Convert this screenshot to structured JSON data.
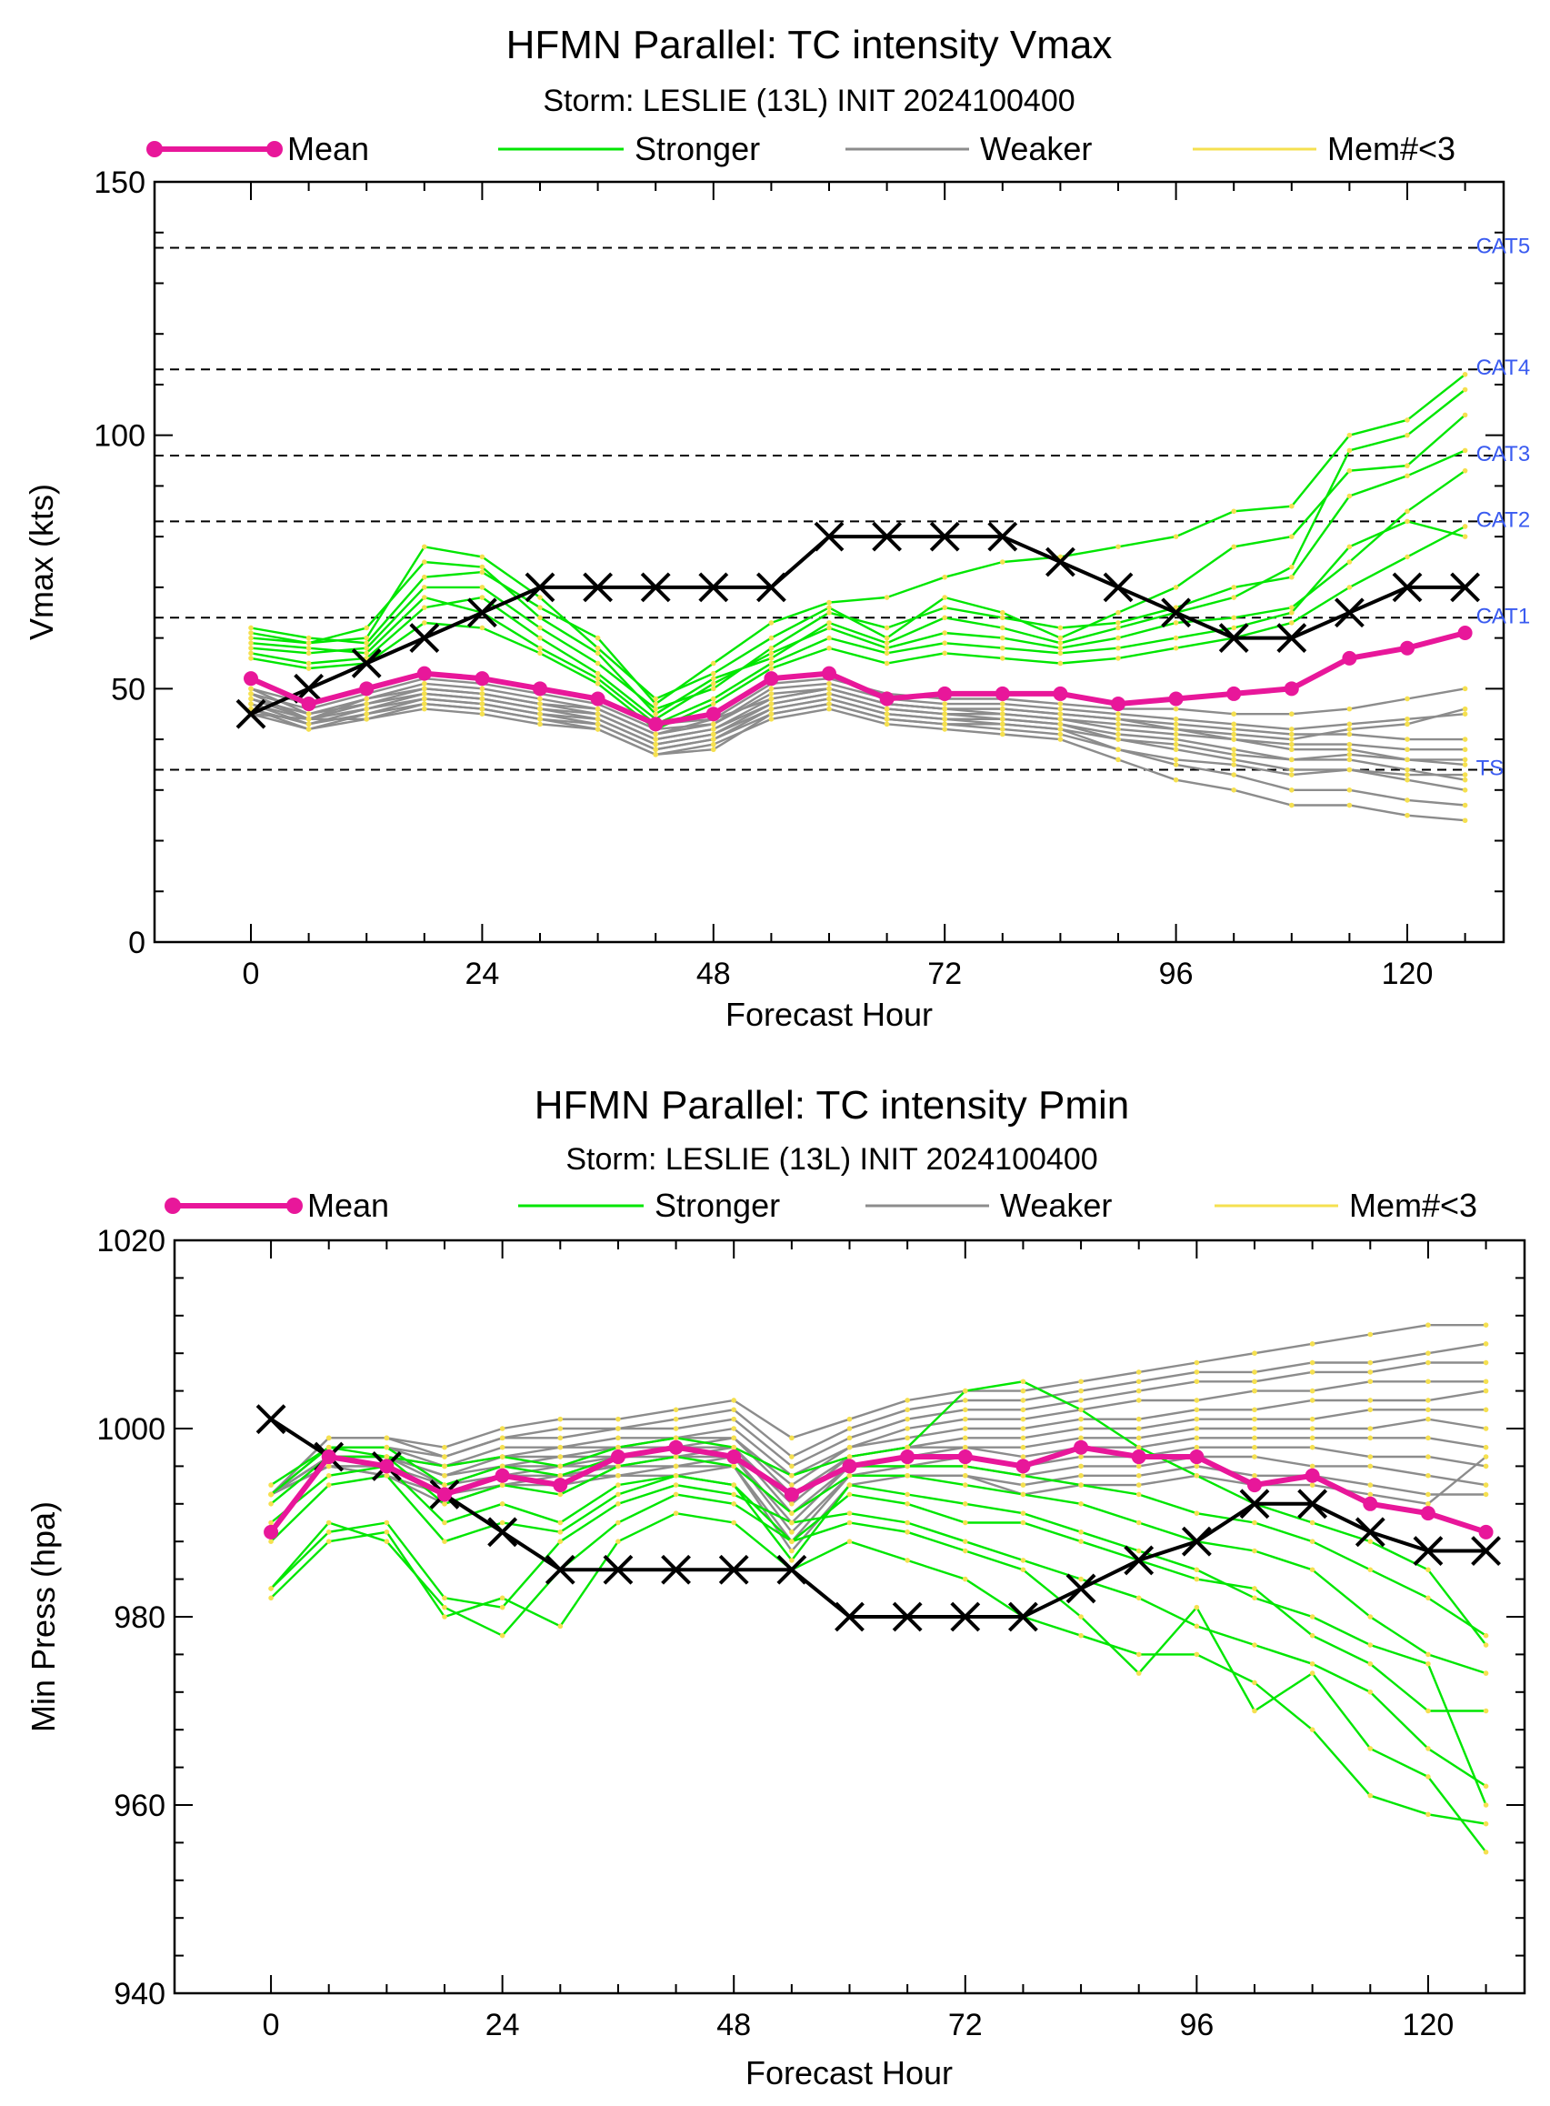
{
  "colors": {
    "mean": "#e8179a",
    "stronger": "#00e600",
    "weaker": "#8c8c8c",
    "memlt3": "#f5e050",
    "obs": "#000000",
    "category": "#3a5bf0",
    "dashed": "#000000"
  },
  "chart_data": [
    {
      "type": "line",
      "title": "HFMN Parallel: TC intensity Vmax",
      "subtitle": "Storm: LESLIE (13L) INIT 2024100400",
      "xlabel": "Forecast Hour",
      "ylabel": "Vmax (kts)",
      "xlim": [
        -10,
        130
      ],
      "ylim": [
        0,
        150
      ],
      "xticks": [
        0,
        24,
        48,
        72,
        96,
        120
      ],
      "yticks": [
        0,
        50,
        100,
        150
      ],
      "legend": {
        "placement": "top",
        "entries": [
          "Mean",
          "Stronger",
          "Weaker",
          "Mem#<3"
        ]
      },
      "category_lines": [
        {
          "label": "TS",
          "value": 34
        },
        {
          "label": "CAT1",
          "value": 64
        },
        {
          "label": "CAT2",
          "value": 83
        },
        {
          "label": "CAT3",
          "value": 96
        },
        {
          "label": "CAT4",
          "value": 113
        },
        {
          "label": "CAT5",
          "value": 137
        }
      ],
      "x": [
        0,
        6,
        12,
        18,
        24,
        30,
        36,
        42,
        48,
        54,
        60,
        66,
        72,
        78,
        84,
        90,
        96,
        102,
        108,
        114,
        120,
        126
      ],
      "mean": [
        52,
        47,
        50,
        53,
        52,
        50,
        48,
        43,
        45,
        52,
        53,
        48,
        49,
        49,
        49,
        47,
        48,
        49,
        50,
        56,
        58,
        61
      ],
      "observed": [
        45,
        50,
        55,
        60,
        65,
        70,
        70,
        70,
        70,
        70,
        80,
        80,
        80,
        80,
        75,
        70,
        65,
        60,
        60,
        65,
        70,
        70
      ],
      "members_stronger": [
        [
          61,
          59,
          60,
          78,
          76,
          68,
          58,
          48,
          53,
          60,
          66,
          60,
          68,
          65,
          60,
          65,
          70,
          78,
          80,
          93,
          94,
          104
        ],
        [
          62,
          60,
          59,
          72,
          73,
          66,
          60,
          47,
          55,
          63,
          67,
          68,
          72,
          75,
          76,
          78,
          80,
          85,
          86,
          100,
          103,
          112
        ],
        [
          58,
          57,
          58,
          70,
          70,
          62,
          55,
          46,
          50,
          58,
          65,
          62,
          66,
          64,
          62,
          63,
          66,
          70,
          72,
          88,
          92,
          97
        ],
        [
          60,
          59,
          62,
          75,
          74,
          64,
          57,
          45,
          52,
          56,
          63,
          59,
          64,
          62,
          59,
          62,
          65,
          68,
          74,
          97,
          100,
          109
        ],
        [
          57,
          55,
          56,
          66,
          68,
          60,
          53,
          44,
          51,
          57,
          62,
          58,
          61,
          60,
          58,
          60,
          63,
          64,
          66,
          75,
          85,
          93
        ],
        [
          59,
          58,
          57,
          68,
          65,
          58,
          52,
          43,
          48,
          55,
          60,
          57,
          59,
          58,
          57,
          58,
          60,
          62,
          65,
          78,
          83,
          80
        ],
        [
          56,
          54,
          55,
          63,
          62,
          57,
          51,
          42,
          47,
          54,
          58,
          55,
          57,
          56,
          55,
          56,
          58,
          60,
          63,
          70,
          76,
          82
        ]
      ],
      "members_weaker": [
        [
          50,
          45,
          48,
          50,
          49,
          47,
          46,
          41,
          44,
          48,
          50,
          47,
          46,
          45,
          44,
          43,
          42,
          40,
          38,
          38,
          36,
          35
        ],
        [
          48,
          44,
          47,
          49,
          48,
          46,
          45,
          40,
          42,
          47,
          49,
          46,
          45,
          44,
          43,
          41,
          40,
          38,
          36,
          36,
          34,
          32
        ],
        [
          47,
          43,
          46,
          48,
          47,
          45,
          44,
          39,
          41,
          46,
          48,
          45,
          44,
          43,
          42,
          40,
          38,
          36,
          34,
          34,
          32,
          30
        ],
        [
          46,
          42,
          45,
          47,
          46,
          44,
          43,
          38,
          40,
          45,
          47,
          44,
          43,
          42,
          41,
          38,
          35,
          33,
          30,
          30,
          28,
          27
        ],
        [
          45,
          42,
          44,
          46,
          45,
          43,
          42,
          37,
          39,
          44,
          46,
          43,
          42,
          41,
          40,
          36,
          32,
          30,
          27,
          27,
          25,
          24
        ],
        [
          49,
          46,
          49,
          52,
          51,
          49,
          47,
          42,
          43,
          50,
          51,
          48,
          47,
          47,
          46,
          45,
          44,
          43,
          42,
          43,
          44,
          45
        ],
        [
          50,
          47,
          50,
          53,
          52,
          50,
          48,
          43,
          44,
          51,
          52,
          49,
          48,
          48,
          47,
          46,
          46,
          45,
          45,
          46,
          48,
          50
        ],
        [
          48,
          45,
          47,
          50,
          49,
          47,
          45,
          40,
          42,
          48,
          50,
          47,
          46,
          46,
          45,
          44,
          43,
          42,
          41,
          41,
          40,
          40
        ],
        [
          47,
          44,
          46,
          49,
          48,
          46,
          44,
          39,
          41,
          47,
          49,
          46,
          45,
          45,
          44,
          42,
          41,
          40,
          39,
          39,
          38,
          38
        ],
        [
          46,
          43,
          45,
          48,
          47,
          45,
          43,
          38,
          40,
          46,
          48,
          45,
          44,
          44,
          43,
          40,
          39,
          37,
          36,
          37,
          36,
          36
        ],
        [
          45,
          44,
          44,
          47,
          46,
          44,
          42,
          37,
          38,
          45,
          47,
          44,
          43,
          43,
          42,
          38,
          36,
          35,
          33,
          34,
          33,
          33
        ],
        [
          49,
          44,
          48,
          51,
          50,
          48,
          46,
          41,
          43,
          49,
          50,
          47,
          46,
          46,
          45,
          44,
          42,
          41,
          40,
          42,
          43,
          46
        ]
      ]
    },
    {
      "type": "line",
      "title": "HFMN Parallel: TC intensity Pmin",
      "subtitle": "Storm: LESLIE (13L) INIT 2024100400",
      "xlabel": "Forecast Hour",
      "ylabel": "Min Press (hpa)",
      "xlim": [
        -10,
        130
      ],
      "ylim": [
        940,
        1020
      ],
      "xticks": [
        0,
        24,
        48,
        72,
        96,
        120
      ],
      "yticks": [
        940,
        960,
        980,
        1000,
        1020
      ],
      "legend": {
        "placement": "top",
        "entries": [
          "Mean",
          "Stronger",
          "Weaker",
          "Mem#<3"
        ]
      },
      "x": [
        0,
        6,
        12,
        18,
        24,
        30,
        36,
        42,
        48,
        54,
        60,
        66,
        72,
        78,
        84,
        90,
        96,
        102,
        108,
        114,
        120,
        126
      ],
      "mean": [
        989,
        997,
        996,
        993,
        995,
        994,
        997,
        998,
        997,
        993,
        996,
        997,
        997,
        996,
        998,
        997,
        997,
        994,
        995,
        992,
        991,
        989
      ],
      "observed": [
        1001,
        997,
        996,
        993,
        989,
        985,
        985,
        985,
        985,
        985,
        980,
        980,
        980,
        980,
        983,
        986,
        988,
        992,
        992,
        989,
        987,
        987
      ],
      "members_stronger": [
        [
          983,
          990,
          988,
          981,
          978,
          985,
          990,
          993,
          992,
          988,
          990,
          989,
          987,
          985,
          980,
          974,
          981,
          970,
          974,
          966,
          963,
          955
        ],
        [
          982,
          988,
          989,
          980,
          982,
          979,
          988,
          991,
          990,
          985,
          988,
          986,
          984,
          980,
          978,
          976,
          976,
          973,
          968,
          961,
          959,
          958
        ],
        [
          983,
          989,
          990,
          982,
          981,
          988,
          992,
          994,
          993,
          990,
          991,
          990,
          988,
          986,
          984,
          982,
          979,
          977,
          975,
          972,
          966,
          962
        ],
        [
          990,
          995,
          996,
          990,
          992,
          990,
          994,
          995,
          994,
          988,
          993,
          992,
          990,
          990,
          988,
          986,
          984,
          983,
          978,
          975,
          970,
          970
        ],
        [
          992,
          997,
          997,
          992,
          994,
          993,
          996,
          997,
          996,
          991,
          995,
          995,
          994,
          993,
          992,
          990,
          988,
          987,
          985,
          980,
          976,
          974
        ],
        [
          993,
          998,
          998,
          994,
          996,
          995,
          997,
          998,
          997,
          993,
          996,
          996,
          996,
          995,
          994,
          993,
          991,
          990,
          988,
          985,
          982,
          978
        ],
        [
          994,
          998,
          997,
          996,
          997,
          996,
          998,
          999,
          998,
          995,
          997,
          998,
          1004,
          1005,
          1002,
          998,
          995,
          992,
          990,
          988,
          985,
          977
        ],
        [
          988,
          994,
          995,
          988,
          990,
          989,
          993,
          995,
          994,
          986,
          994,
          993,
          992,
          991,
          989,
          987,
          985,
          982,
          980,
          977,
          975,
          960
        ]
      ],
      "members_weaker": [
        [
          993,
          999,
          999,
          997,
          999,
          1000,
          1000,
          1001,
          1002,
          997,
          1000,
          1002,
          1003,
          1003,
          1004,
          1005,
          1006,
          1006,
          1007,
          1007,
          1008,
          1009
        ],
        [
          993,
          999,
          999,
          998,
          1000,
          1001,
          1001,
          1002,
          1003,
          999,
          1001,
          1003,
          1004,
          1004,
          1005,
          1006,
          1007,
          1008,
          1009,
          1010,
          1011,
          1011
        ],
        [
          993,
          998,
          998,
          997,
          999,
          999,
          1000,
          1000,
          1001,
          996,
          999,
          1001,
          1002,
          1002,
          1003,
          1004,
          1005,
          1005,
          1006,
          1006,
          1007,
          1007
        ],
        [
          993,
          998,
          998,
          996,
          998,
          998,
          999,
          999,
          1000,
          995,
          998,
          1000,
          1001,
          1001,
          1002,
          1003,
          1003,
          1004,
          1004,
          1005,
          1005,
          1005
        ],
        [
          993,
          997,
          997,
          996,
          997,
          998,
          998,
          999,
          999,
          994,
          998,
          999,
          1000,
          1000,
          1001,
          1001,
          1002,
          1002,
          1003,
          1003,
          1003,
          1004
        ],
        [
          993,
          997,
          997,
          995,
          997,
          997,
          998,
          998,
          999,
          993,
          997,
          998,
          999,
          999,
          1000,
          1000,
          1001,
          1001,
          1001,
          1002,
          1002,
          1002
        ],
        [
          993,
          997,
          997,
          995,
          996,
          997,
          997,
          998,
          998,
          992,
          997,
          998,
          998,
          998,
          999,
          999,
          1000,
          1000,
          1000,
          1000,
          1001,
          1000
        ],
        [
          993,
          997,
          997,
          994,
          996,
          996,
          997,
          997,
          998,
          991,
          996,
          997,
          998,
          997,
          998,
          998,
          999,
          999,
          999,
          999,
          999,
          998
        ],
        [
          993,
          996,
          996,
          994,
          995,
          996,
          996,
          997,
          997,
          990,
          996,
          996,
          997,
          996,
          997,
          997,
          998,
          998,
          998,
          997,
          997,
          996
        ],
        [
          993,
          996,
          996,
          993,
          995,
          995,
          996,
          996,
          997,
          989,
          995,
          996,
          996,
          995,
          996,
          996,
          997,
          997,
          996,
          996,
          995,
          994
        ],
        [
          993,
          996,
          995,
          993,
          994,
          995,
          995,
          996,
          996,
          988,
          995,
          995,
          995,
          994,
          995,
          995,
          996,
          995,
          995,
          994,
          993,
          993
        ],
        [
          993,
          996,
          995,
          992,
          994,
          994,
          995,
          995,
          996,
          987,
          994,
          995,
          995,
          993,
          994,
          994,
          995,
          994,
          994,
          993,
          992,
          997
        ]
      ]
    }
  ]
}
